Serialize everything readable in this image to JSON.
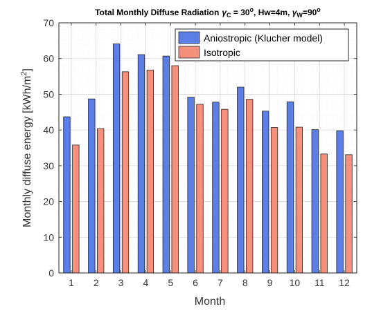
{
  "chart_data": {
    "type": "bar",
    "title": "Total Monthly Diffuse Radiation",
    "title_params": {
      "gamma_c": "30",
      "hw": ", Hw=4m, ",
      "gamma_w": "90"
    },
    "xlabel": "Month",
    "ylabel": "Monthly diffuse energy [kWh/m",
    "ylabel_sup": "2",
    "ylabel_end": "]",
    "categories": [
      "1",
      "2",
      "3",
      "4",
      "5",
      "6",
      "7",
      "8",
      "9",
      "10",
      "11",
      "12"
    ],
    "ylim": [
      0,
      70
    ],
    "yticks": [
      "0",
      "10",
      "20",
      "30",
      "40",
      "50",
      "60",
      "70"
    ],
    "grid": true,
    "legend_position": "top-right",
    "series": [
      {
        "name": "Aniostropic (Klucher model)",
        "color": "#5b7fe6",
        "values": [
          43.7,
          48.7,
          64.1,
          61.1,
          60.7,
          49.2,
          47.8,
          52.0,
          45.3,
          47.9,
          40.1,
          39.8
        ]
      },
      {
        "name": "Isotropic",
        "color": "#f4907c",
        "values": [
          35.8,
          40.4,
          56.3,
          56.8,
          58.0,
          47.2,
          45.8,
          48.6,
          40.7,
          40.8,
          33.3,
          33.1
        ]
      }
    ]
  }
}
